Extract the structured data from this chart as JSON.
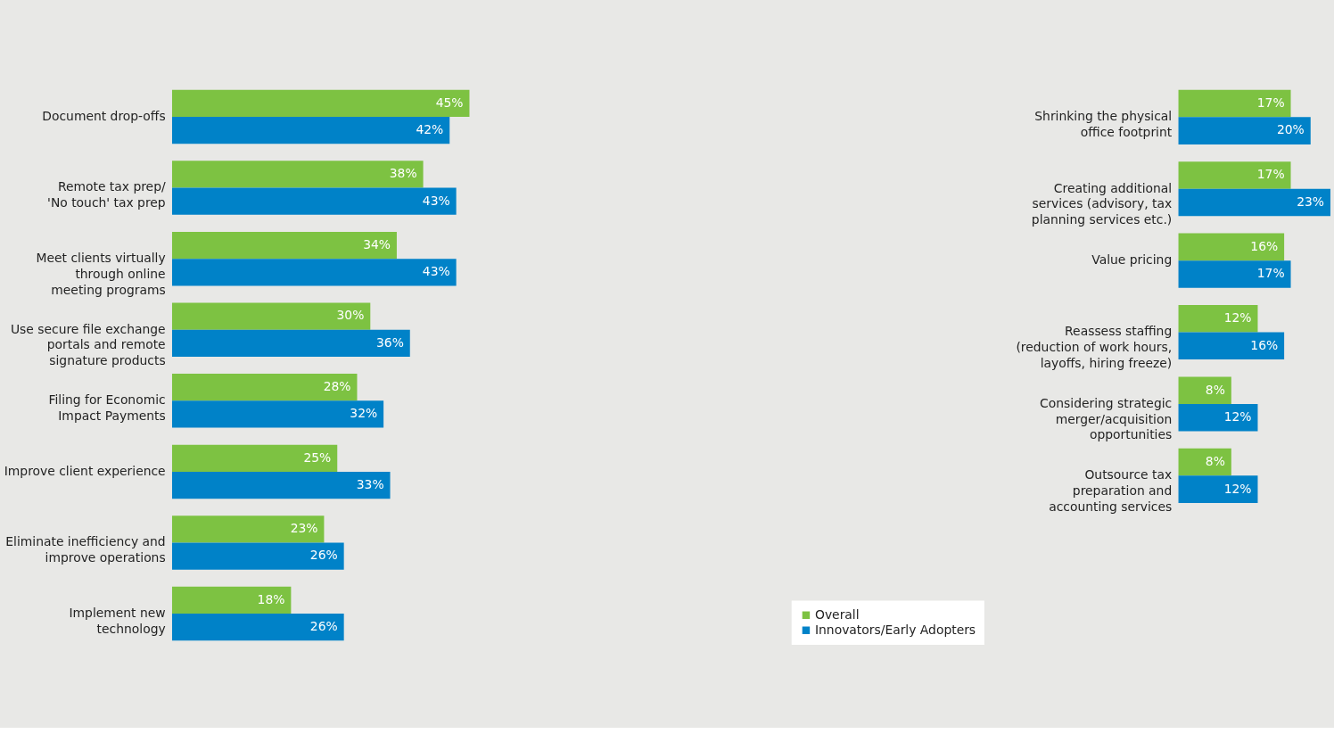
{
  "chart_data": [
    {
      "type": "bar",
      "orientation": "horizontal",
      "legend": "bottom right",
      "categories": [
        "Document drop-offs",
        "Remote tax prep/\n'No touch' tax prep",
        "Meet clients virtually\nthrough online\nmeeting programs",
        "Use secure file exchange\nportals and remote\nsignature products",
        "Filing for Economic\nImpact Payments",
        "Improve client experience",
        "Eliminate inefficiency and\nimprove operations",
        "Implement new\ntechnology"
      ],
      "series": [
        {
          "name": "Overall",
          "color": "#7dc242",
          "values": [
            45,
            38,
            34,
            30,
            28,
            25,
            23,
            18
          ],
          "value_labels": [
            "45%",
            "38%",
            "34%",
            "30%",
            "28%",
            "25%",
            "23%",
            "18%"
          ]
        },
        {
          "name": "Innovators/Early Adopters",
          "color": "#0082c8",
          "values": [
            42,
            43,
            43,
            36,
            32,
            33,
            26,
            26
          ],
          "value_labels": [
            "42%",
            "43%",
            "43%",
            "36%",
            "32%",
            "33%",
            "26%",
            "26%"
          ]
        }
      ]
    },
    {
      "type": "bar",
      "orientation": "horizontal",
      "categories": [
        "Shrinking the physical\noffice footprint",
        "Creating additional\nservices (advisory, tax\nplanning services etc.)",
        "Value pricing",
        "Reassess staffing\n(reduction of work hours,\nlayoffs, hiring freeze)",
        "Considering strategic\nmerger/acquisition\nopportunities",
        "Outsource tax\npreparation and\naccounting services"
      ],
      "series": [
        {
          "color": "#7dc242",
          "values": [
            17,
            17,
            16,
            12,
            8,
            8
          ],
          "value_labels": [
            "17%",
            "17%",
            "16%",
            "12%",
            "8%",
            "8%"
          ]
        },
        {
          "color": "#0082c8",
          "values": [
            20,
            23,
            17,
            16,
            12,
            12
          ],
          "value_labels": [
            "20%",
            "23%",
            "17%",
            "16%",
            "12%",
            "12%"
          ]
        }
      ]
    }
  ]
}
